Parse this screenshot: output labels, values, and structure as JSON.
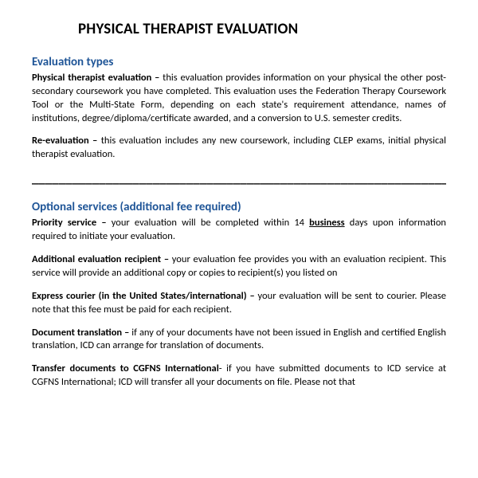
{
  "title": "PHYSICAL THERAPIST EVALUATION",
  "section1": {
    "heading": "Evaluation types",
    "item1_term": "Physical therapist evaluation – ",
    "item1_body": "this evaluation provides information on your physical the other post-secondary coursework you have completed.  This evaluation uses the Federation Therapy Coursework Tool or the Multi-State Form, depending on each state's requirement attendance, names of institutions, degree/diploma/certificate awarded, and a conversion to U.S. semester credits.",
    "item2_term": "Re-evaluation – ",
    "item2_body": "this evaluation includes any new coursework, including CLEP exams, initial physical therapist evaluation."
  },
  "divider": "_______________________________________________________________________",
  "section2": {
    "heading": "Optional services (additional fee required)",
    "item1_term": "Priority service – ",
    "item1_pre": "your evaluation will be completed within 14 ",
    "item1_underlined": "business",
    "item1_post": " days upon information required to initiate your evaluation.",
    "item2_term": "Additional evaluation recipient – ",
    "item2_body": "your evaluation fee provides you with an evaluation recipient.  This service will provide an additional copy or copies to recipient(s) you listed on",
    "item3_term": "Express courier (in the United States/international) – ",
    "item3_body": "your evaluation will be sent to courier.  Please note that this fee must be paid for each recipient.",
    "item4_term": "Document translation – ",
    "item4_body": "if any of your documents have not been issued in English and certified English translation, ICD can arrange for translation of documents.",
    "item5_term": "Transfer documents to CGFNS International",
    "item5_body": "- if you have submitted documents to ICD service at CGFNS International; ICD will transfer all your documents on file. Please not that"
  }
}
